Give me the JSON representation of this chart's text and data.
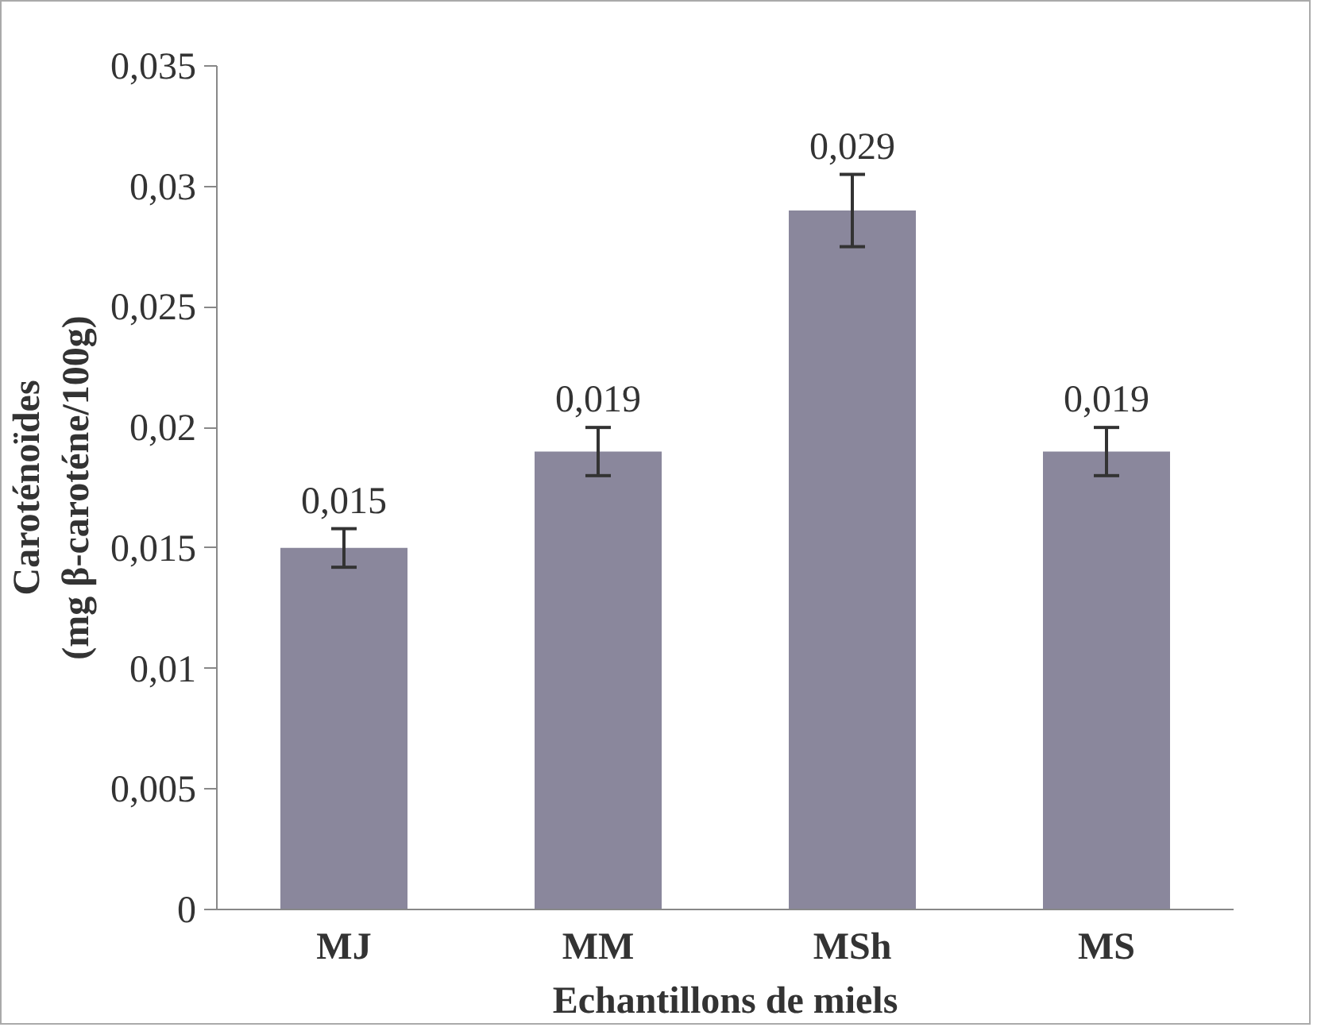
{
  "chart_data": {
    "type": "bar",
    "xlabel": "Echantillons de miels",
    "ylabel": "Caroténoïdes\n(mg β-caroténe/100g)",
    "categories": [
      "MJ",
      "MM",
      "MSh",
      "MS"
    ],
    "values": [
      0.015,
      0.019,
      0.029,
      0.019
    ],
    "errors": [
      0.0008,
      0.001,
      0.0015,
      0.001
    ],
    "value_labels": [
      "0,015",
      "0,019",
      "0,029",
      "0,019"
    ],
    "color": "#8a879c",
    "ylim": [
      0,
      0.035
    ],
    "yticks": [
      {
        "value": 0,
        "label": "0"
      },
      {
        "value": 0.005,
        "label": "0,005"
      },
      {
        "value": 0.01,
        "label": "0,01"
      },
      {
        "value": 0.015,
        "label": "0,015"
      },
      {
        "value": 0.02,
        "label": "0,02"
      },
      {
        "value": 0.025,
        "label": "0,025"
      },
      {
        "value": 0.03,
        "label": "0,03"
      },
      {
        "value": 0.035,
        "label": "0,035"
      }
    ],
    "grid": false
  }
}
